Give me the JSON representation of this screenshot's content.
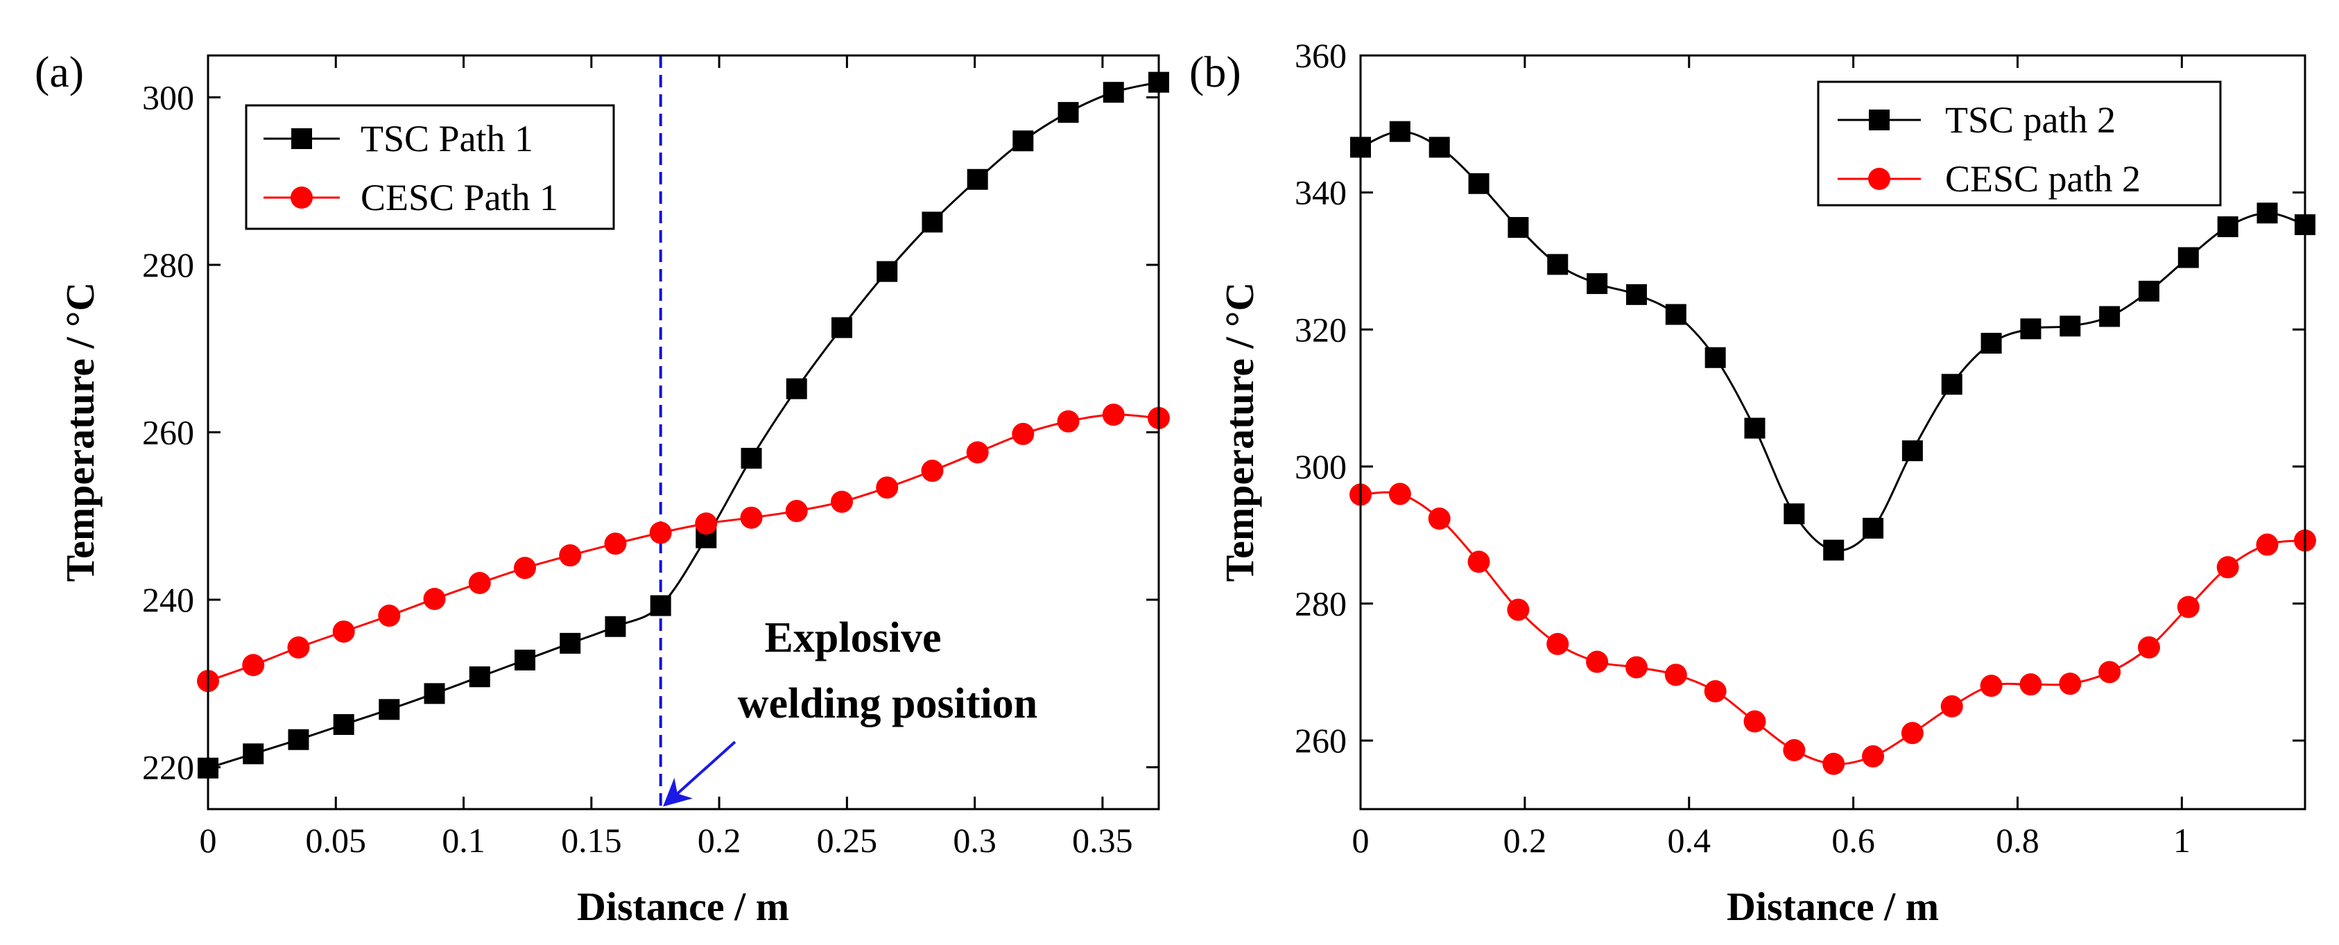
{
  "chart_data": [
    {
      "panel_label": "(a)",
      "type": "line",
      "xlabel": "Distance / m",
      "ylabel": "Temperature / °C",
      "xlim": [
        0,
        0.372
      ],
      "ylim": [
        215,
        305
      ],
      "xticks": [
        0,
        0.05,
        0.1,
        0.15,
        0.2,
        0.25,
        0.3,
        0.35
      ],
      "xtick_labels": [
        "0",
        "0.05",
        "0.1",
        "0.15",
        "0.2",
        "0.25",
        "0.3",
        "0.35"
      ],
      "yticks": [
        220,
        240,
        260,
        280,
        300
      ],
      "ytick_labels": [
        "220",
        "240",
        "260",
        "280",
        "300"
      ],
      "legend_position": "top-left",
      "series": [
        {
          "name": "TSC Path 1",
          "color": "#000000",
          "marker": "square",
          "x": [
            0,
            0.0177,
            0.0354,
            0.0531,
            0.0709,
            0.0886,
            0.1063,
            0.124,
            0.1417,
            0.1594,
            0.1771,
            0.1949,
            0.2126,
            0.2303,
            0.248,
            0.2657,
            0.2834,
            0.3011,
            0.3189,
            0.3366,
            0.3543,
            0.372
          ],
          "values": [
            219.9,
            221.6,
            223.3,
            225.1,
            226.9,
            228.8,
            230.8,
            232.8,
            234.8,
            236.8,
            239.3,
            247.4,
            256.9,
            265.2,
            272.5,
            279.2,
            285.1,
            290.2,
            294.8,
            298.2,
            300.6,
            301.8
          ]
        },
        {
          "name": "CESC Path 1",
          "color": "#ff0000",
          "marker": "circle",
          "x": [
            0,
            0.0177,
            0.0354,
            0.0531,
            0.0709,
            0.0886,
            0.1063,
            0.124,
            0.1417,
            0.1594,
            0.1771,
            0.1949,
            0.2126,
            0.2303,
            0.248,
            0.2657,
            0.2834,
            0.3011,
            0.3189,
            0.3366,
            0.3543,
            0.372
          ],
          "values": [
            230.3,
            232.2,
            234.3,
            236.2,
            238.1,
            240.1,
            242.0,
            243.8,
            245.3,
            246.7,
            248.0,
            249.1,
            249.8,
            250.6,
            251.7,
            253.4,
            255.4,
            257.6,
            259.8,
            261.3,
            262.1,
            261.7
          ]
        }
      ],
      "reference_line": {
        "x": 0.1771,
        "color": "#1010e0",
        "style": "dashed"
      },
      "annotation": {
        "lines": [
          "Explosive",
          "welding position"
        ],
        "color": "#1a1ae6",
        "arrow_to": {
          "x": 0.1771,
          "y": 215
        }
      }
    },
    {
      "panel_label": "(b)",
      "type": "line",
      "xlabel": "Distance / m",
      "ylabel": "Temperature / °C",
      "xlim": [
        0,
        1.15
      ],
      "ylim": [
        250,
        360
      ],
      "xticks": [
        0,
        0.2,
        0.4,
        0.6,
        0.8,
        1.0
      ],
      "xtick_labels": [
        "0",
        "0.2",
        "0.4",
        "0.6",
        "0.8",
        "1"
      ],
      "yticks": [
        260,
        280,
        300,
        320,
        340,
        360
      ],
      "ytick_labels": [
        "260",
        "280",
        "300",
        "320",
        "340",
        "360"
      ],
      "legend_position": "top-right",
      "series": [
        {
          "name": "TSC path 2",
          "color": "#000000",
          "marker": "square",
          "x": [
            0,
            0.048,
            0.096,
            0.144,
            0.192,
            0.24,
            0.288,
            0.336,
            0.384,
            0.432,
            0.48,
            0.528,
            0.576,
            0.624,
            0.672,
            0.72,
            0.768,
            0.816,
            0.864,
            0.912,
            0.96,
            1.008,
            1.056,
            1.104,
            1.15
          ],
          "values": [
            346.6,
            348.9,
            346.6,
            341.3,
            334.9,
            329.5,
            326.7,
            325.1,
            322.2,
            315.9,
            305.6,
            293.1,
            287.8,
            291.0,
            302.3,
            312.0,
            318.0,
            320.1,
            320.5,
            321.9,
            325.6,
            330.5,
            335.0,
            337.0,
            335.3
          ]
        },
        {
          "name": "CESC path 2",
          "color": "#ff0000",
          "marker": "circle",
          "x": [
            0,
            0.048,
            0.096,
            0.144,
            0.192,
            0.24,
            0.288,
            0.336,
            0.384,
            0.432,
            0.48,
            0.528,
            0.576,
            0.624,
            0.672,
            0.72,
            0.768,
            0.816,
            0.864,
            0.912,
            0.96,
            1.008,
            1.056,
            1.104,
            1.15
          ],
          "values": [
            295.9,
            296.0,
            292.4,
            286.1,
            279.1,
            274.1,
            271.5,
            270.7,
            269.6,
            267.2,
            262.8,
            258.6,
            256.6,
            257.7,
            261.1,
            265.0,
            268.0,
            268.2,
            268.3,
            270.0,
            273.6,
            279.5,
            285.3,
            288.6,
            289.2
          ]
        }
      ]
    }
  ]
}
